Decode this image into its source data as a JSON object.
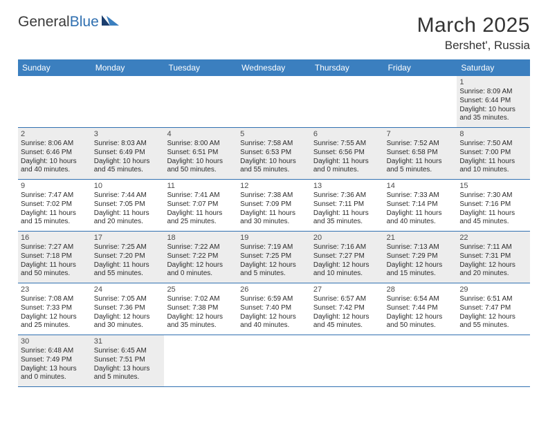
{
  "logo": {
    "text_general": "General",
    "text_blue": "Blue"
  },
  "header": {
    "month_title": "March 2025",
    "location": "Bershet', Russia"
  },
  "colors": {
    "header_bar": "#3b7fbf",
    "row_divider": "#2f6fb0",
    "shaded_cell": "#ededed",
    "page_bg": "#ffffff",
    "text_dark": "#333333",
    "logo_blue": "#2f6fb0"
  },
  "weekdays": [
    "Sunday",
    "Monday",
    "Tuesday",
    "Wednesday",
    "Thursday",
    "Friday",
    "Saturday"
  ],
  "weeks": [
    [
      {
        "empty": true
      },
      {
        "empty": true
      },
      {
        "empty": true
      },
      {
        "empty": true
      },
      {
        "empty": true
      },
      {
        "empty": true
      },
      {
        "day": "1",
        "shaded": true,
        "sunrise": "Sunrise: 8:09 AM",
        "sunset": "Sunset: 6:44 PM",
        "daylight1": "Daylight: 10 hours",
        "daylight2": "and 35 minutes."
      }
    ],
    [
      {
        "day": "2",
        "shaded": true,
        "sunrise": "Sunrise: 8:06 AM",
        "sunset": "Sunset: 6:46 PM",
        "daylight1": "Daylight: 10 hours",
        "daylight2": "and 40 minutes."
      },
      {
        "day": "3",
        "shaded": true,
        "sunrise": "Sunrise: 8:03 AM",
        "sunset": "Sunset: 6:49 PM",
        "daylight1": "Daylight: 10 hours",
        "daylight2": "and 45 minutes."
      },
      {
        "day": "4",
        "shaded": true,
        "sunrise": "Sunrise: 8:00 AM",
        "sunset": "Sunset: 6:51 PM",
        "daylight1": "Daylight: 10 hours",
        "daylight2": "and 50 minutes."
      },
      {
        "day": "5",
        "shaded": true,
        "sunrise": "Sunrise: 7:58 AM",
        "sunset": "Sunset: 6:53 PM",
        "daylight1": "Daylight: 10 hours",
        "daylight2": "and 55 minutes."
      },
      {
        "day": "6",
        "shaded": true,
        "sunrise": "Sunrise: 7:55 AM",
        "sunset": "Sunset: 6:56 PM",
        "daylight1": "Daylight: 11 hours",
        "daylight2": "and 0 minutes."
      },
      {
        "day": "7",
        "shaded": true,
        "sunrise": "Sunrise: 7:52 AM",
        "sunset": "Sunset: 6:58 PM",
        "daylight1": "Daylight: 11 hours",
        "daylight2": "and 5 minutes."
      },
      {
        "day": "8",
        "shaded": true,
        "sunrise": "Sunrise: 7:50 AM",
        "sunset": "Sunset: 7:00 PM",
        "daylight1": "Daylight: 11 hours",
        "daylight2": "and 10 minutes."
      }
    ],
    [
      {
        "day": "9",
        "shaded": false,
        "sunrise": "Sunrise: 7:47 AM",
        "sunset": "Sunset: 7:02 PM",
        "daylight1": "Daylight: 11 hours",
        "daylight2": "and 15 minutes."
      },
      {
        "day": "10",
        "shaded": false,
        "sunrise": "Sunrise: 7:44 AM",
        "sunset": "Sunset: 7:05 PM",
        "daylight1": "Daylight: 11 hours",
        "daylight2": "and 20 minutes."
      },
      {
        "day": "11",
        "shaded": false,
        "sunrise": "Sunrise: 7:41 AM",
        "sunset": "Sunset: 7:07 PM",
        "daylight1": "Daylight: 11 hours",
        "daylight2": "and 25 minutes."
      },
      {
        "day": "12",
        "shaded": false,
        "sunrise": "Sunrise: 7:38 AM",
        "sunset": "Sunset: 7:09 PM",
        "daylight1": "Daylight: 11 hours",
        "daylight2": "and 30 minutes."
      },
      {
        "day": "13",
        "shaded": false,
        "sunrise": "Sunrise: 7:36 AM",
        "sunset": "Sunset: 7:11 PM",
        "daylight1": "Daylight: 11 hours",
        "daylight2": "and 35 minutes."
      },
      {
        "day": "14",
        "shaded": false,
        "sunrise": "Sunrise: 7:33 AM",
        "sunset": "Sunset: 7:14 PM",
        "daylight1": "Daylight: 11 hours",
        "daylight2": "and 40 minutes."
      },
      {
        "day": "15",
        "shaded": false,
        "sunrise": "Sunrise: 7:30 AM",
        "sunset": "Sunset: 7:16 PM",
        "daylight1": "Daylight: 11 hours",
        "daylight2": "and 45 minutes."
      }
    ],
    [
      {
        "day": "16",
        "shaded": true,
        "sunrise": "Sunrise: 7:27 AM",
        "sunset": "Sunset: 7:18 PM",
        "daylight1": "Daylight: 11 hours",
        "daylight2": "and 50 minutes."
      },
      {
        "day": "17",
        "shaded": true,
        "sunrise": "Sunrise: 7:25 AM",
        "sunset": "Sunset: 7:20 PM",
        "daylight1": "Daylight: 11 hours",
        "daylight2": "and 55 minutes."
      },
      {
        "day": "18",
        "shaded": true,
        "sunrise": "Sunrise: 7:22 AM",
        "sunset": "Sunset: 7:22 PM",
        "daylight1": "Daylight: 12 hours",
        "daylight2": "and 0 minutes."
      },
      {
        "day": "19",
        "shaded": true,
        "sunrise": "Sunrise: 7:19 AM",
        "sunset": "Sunset: 7:25 PM",
        "daylight1": "Daylight: 12 hours",
        "daylight2": "and 5 minutes."
      },
      {
        "day": "20",
        "shaded": true,
        "sunrise": "Sunrise: 7:16 AM",
        "sunset": "Sunset: 7:27 PM",
        "daylight1": "Daylight: 12 hours",
        "daylight2": "and 10 minutes."
      },
      {
        "day": "21",
        "shaded": true,
        "sunrise": "Sunrise: 7:13 AM",
        "sunset": "Sunset: 7:29 PM",
        "daylight1": "Daylight: 12 hours",
        "daylight2": "and 15 minutes."
      },
      {
        "day": "22",
        "shaded": true,
        "sunrise": "Sunrise: 7:11 AM",
        "sunset": "Sunset: 7:31 PM",
        "daylight1": "Daylight: 12 hours",
        "daylight2": "and 20 minutes."
      }
    ],
    [
      {
        "day": "23",
        "shaded": false,
        "sunrise": "Sunrise: 7:08 AM",
        "sunset": "Sunset: 7:33 PM",
        "daylight1": "Daylight: 12 hours",
        "daylight2": "and 25 minutes."
      },
      {
        "day": "24",
        "shaded": false,
        "sunrise": "Sunrise: 7:05 AM",
        "sunset": "Sunset: 7:36 PM",
        "daylight1": "Daylight: 12 hours",
        "daylight2": "and 30 minutes."
      },
      {
        "day": "25",
        "shaded": false,
        "sunrise": "Sunrise: 7:02 AM",
        "sunset": "Sunset: 7:38 PM",
        "daylight1": "Daylight: 12 hours",
        "daylight2": "and 35 minutes."
      },
      {
        "day": "26",
        "shaded": false,
        "sunrise": "Sunrise: 6:59 AM",
        "sunset": "Sunset: 7:40 PM",
        "daylight1": "Daylight: 12 hours",
        "daylight2": "and 40 minutes."
      },
      {
        "day": "27",
        "shaded": false,
        "sunrise": "Sunrise: 6:57 AM",
        "sunset": "Sunset: 7:42 PM",
        "daylight1": "Daylight: 12 hours",
        "daylight2": "and 45 minutes."
      },
      {
        "day": "28",
        "shaded": false,
        "sunrise": "Sunrise: 6:54 AM",
        "sunset": "Sunset: 7:44 PM",
        "daylight1": "Daylight: 12 hours",
        "daylight2": "and 50 minutes."
      },
      {
        "day": "29",
        "shaded": false,
        "sunrise": "Sunrise: 6:51 AM",
        "sunset": "Sunset: 7:47 PM",
        "daylight1": "Daylight: 12 hours",
        "daylight2": "and 55 minutes."
      }
    ],
    [
      {
        "day": "30",
        "shaded": true,
        "sunrise": "Sunrise: 6:48 AM",
        "sunset": "Sunset: 7:49 PM",
        "daylight1": "Daylight: 13 hours",
        "daylight2": "and 0 minutes."
      },
      {
        "day": "31",
        "shaded": true,
        "sunrise": "Sunrise: 6:45 AM",
        "sunset": "Sunset: 7:51 PM",
        "daylight1": "Daylight: 13 hours",
        "daylight2": "and 5 minutes."
      },
      {
        "empty": true
      },
      {
        "empty": true
      },
      {
        "empty": true
      },
      {
        "empty": true
      },
      {
        "empty": true
      }
    ]
  ]
}
